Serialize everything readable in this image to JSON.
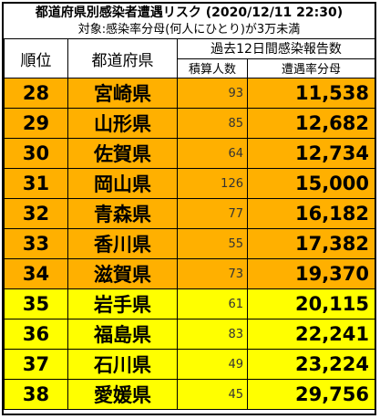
{
  "header": {
    "title": "都道府県別感染者遭遇リスク (2020/12/11 22:30)",
    "subtitle": "対象:感染率分母(何人にひとり)が3万未満"
  },
  "table": {
    "col_rank": "順位",
    "col_pref": "都道府県",
    "col_group": "過去12日間感染報告数",
    "col_cases": "積算人数",
    "col_risk": "遭遇率分母",
    "colors": {
      "orange": "#ffb000",
      "yellow": "#ffff00"
    },
    "rows": [
      {
        "rank": "28",
        "pref": "宮崎県",
        "cases": "93",
        "risk": "11,538",
        "color": "#ffb000"
      },
      {
        "rank": "29",
        "pref": "山形県",
        "cases": "85",
        "risk": "12,682",
        "color": "#ffb000"
      },
      {
        "rank": "30",
        "pref": "佐賀県",
        "cases": "64",
        "risk": "12,734",
        "color": "#ffb000"
      },
      {
        "rank": "31",
        "pref": "岡山県",
        "cases": "126",
        "risk": "15,000",
        "color": "#ffb000"
      },
      {
        "rank": "32",
        "pref": "青森県",
        "cases": "77",
        "risk": "16,182",
        "color": "#ffb000"
      },
      {
        "rank": "33",
        "pref": "香川県",
        "cases": "55",
        "risk": "17,382",
        "color": "#ffb000"
      },
      {
        "rank": "34",
        "pref": "滋賀県",
        "cases": "73",
        "risk": "19,370",
        "color": "#ffb000"
      },
      {
        "rank": "35",
        "pref": "岩手県",
        "cases": "61",
        "risk": "20,115",
        "color": "#ffff00"
      },
      {
        "rank": "36",
        "pref": "福島県",
        "cases": "83",
        "risk": "22,241",
        "color": "#ffff00"
      },
      {
        "rank": "37",
        "pref": "石川県",
        "cases": "49",
        "risk": "23,224",
        "color": "#ffff00"
      },
      {
        "rank": "38",
        "pref": "愛媛県",
        "cases": "45",
        "risk": "29,756",
        "color": "#ffff00"
      }
    ]
  }
}
